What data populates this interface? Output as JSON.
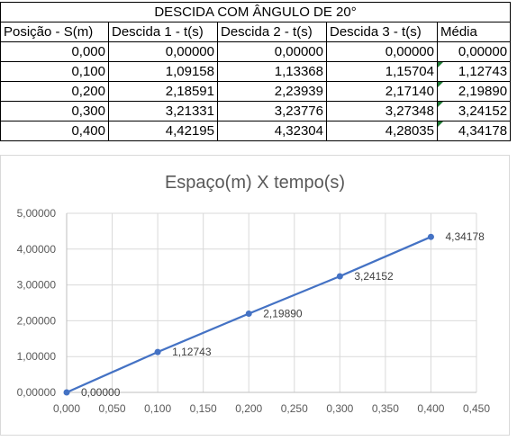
{
  "table": {
    "title": "DESCIDA COM ÂNGULO DE 20°",
    "headers": [
      "Posição - S(m)",
      "Descida 1 - t(s)",
      "Descida 2 - t(s)",
      "Descida 3 - t(s)",
      "Média"
    ],
    "rows": [
      [
        "0,000",
        "0,00000",
        "0,00000",
        "0,00000",
        "0,00000"
      ],
      [
        "0,100",
        "1,09158",
        "1,13368",
        "1,15704",
        "1,12743"
      ],
      [
        "0,200",
        "2,18591",
        "2,23939",
        "2,17140",
        "2,19890"
      ],
      [
        "0,300",
        "3,21331",
        "3,23776",
        "3,27348",
        "3,24152"
      ],
      [
        "0,400",
        "4,42195",
        "4,32304",
        "4,28035",
        "4,34178"
      ]
    ],
    "flag_color": "#1e7b34"
  },
  "chart_data": {
    "type": "line",
    "title": "Espaço(m) X tempo(s)",
    "xlabel": "",
    "ylabel": "",
    "x": [
      0.0,
      0.1,
      0.2,
      0.3,
      0.4
    ],
    "series": [
      {
        "values": [
          0.0,
          1.12743,
          2.1989,
          3.24152,
          4.34178
        ],
        "labels": [
          "0,00000",
          "1,12743",
          "2,19890",
          "3,24152",
          "4,34178"
        ],
        "color": "#4472c4"
      }
    ],
    "xlim": [
      0,
      0.45
    ],
    "ylim": [
      0,
      5
    ],
    "x_ticks": [
      "0,000",
      "0,050",
      "0,100",
      "0,150",
      "0,200",
      "0,250",
      "0,300",
      "0,350",
      "0,400",
      "0,450"
    ],
    "y_ticks": [
      "0,00000",
      "1,00000",
      "2,00000",
      "3,00000",
      "4,00000",
      "5,00000"
    ],
    "grid": true,
    "legend": "none"
  }
}
